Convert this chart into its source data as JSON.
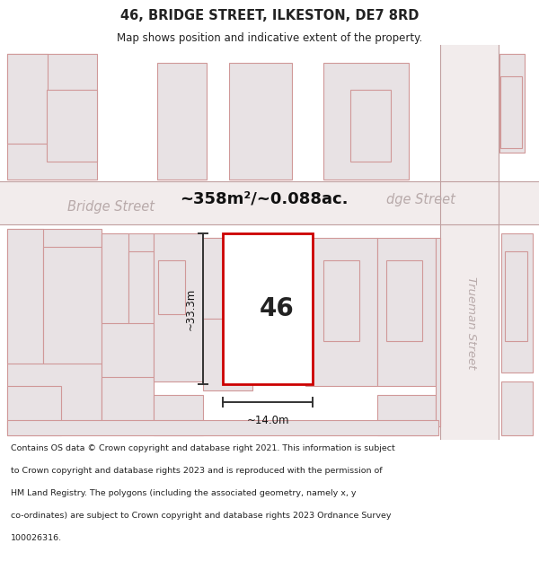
{
  "title": "46, BRIDGE STREET, ILKESTON, DE7 8RD",
  "subtitle": "Map shows position and indicative extent of the property.",
  "area_label": "~358m²/~0.088ac.",
  "property_number": "46",
  "width_label": "~14.0m",
  "height_label": "~33.3m",
  "footer_lines": [
    "Contains OS data © Crown copyright and database right 2021. This information is subject",
    "to Crown copyright and database rights 2023 and is reproduced with the permission of",
    "HM Land Registry. The polygons (including the associated geometry, namely x, y",
    "co-ordinates) are subject to Crown copyright and database rights 2023 Ordnance Survey",
    "100026316."
  ],
  "bg_color": "#ffffff",
  "map_bg": "#f5f0f2",
  "bld_fill": "#e8e2e4",
  "bld_edge": "#d09898",
  "property_stroke": "#cc0000",
  "property_fill": "#ffffff",
  "road_label_color": "#b8aaaa",
  "street_label": "Bridge Street",
  "street_label2": "Trueman Street",
  "area_label_color": "#111111",
  "meas_color": "#333333",
  "title_color": "#222222",
  "footer_color": "#222222"
}
